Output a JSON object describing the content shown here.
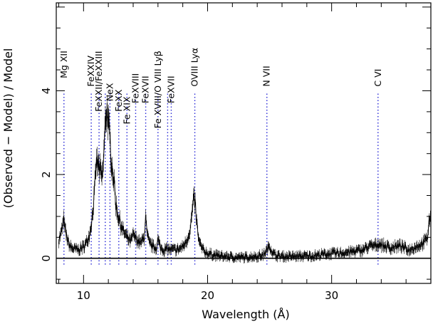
{
  "chart_data": {
    "type": "line",
    "title": "",
    "xlabel": "Wavelength (Å)",
    "ylabel": "(Observed − Model) / Model",
    "xlim": [
      7.8,
      38
    ],
    "ylim": [
      -0.6,
      6.1
    ],
    "xticks": [
      10,
      20,
      30
    ],
    "yticks": [
      0,
      2,
      4
    ],
    "zero_line": 0,
    "grid": false,
    "legend": "none",
    "series": [
      {
        "x": [
          8.0,
          8.2,
          8.4,
          8.6,
          8.8,
          9.0,
          9.3,
          9.6,
          9.9,
          10.2,
          10.5,
          10.7,
          10.9,
          11.0,
          11.1,
          11.2,
          11.3,
          11.4,
          11.5,
          11.6,
          11.7,
          11.8,
          11.9,
          12.0,
          12.1,
          12.2,
          12.3,
          12.4,
          12.5,
          12.6,
          12.8,
          13.0,
          13.2,
          13.4,
          13.6,
          13.8,
          14.0,
          14.3,
          14.6,
          14.9,
          15.0,
          15.1,
          15.3,
          15.6,
          15.9,
          16.0,
          16.2,
          16.5,
          16.8,
          17.1,
          17.4,
          17.7,
          18.0,
          18.3,
          18.6,
          18.8,
          18.9,
          19.0,
          19.1,
          19.3,
          19.6,
          20.0,
          20.5,
          21.0,
          21.5,
          22.0,
          22.5,
          23.0,
          23.5,
          24.0,
          24.5,
          24.8,
          25.0,
          25.3,
          25.8,
          26.5,
          27.5,
          28.5,
          29.5,
          30.5,
          31.5,
          32.5,
          33.0,
          33.5,
          33.8,
          34.2,
          34.8,
          35.5,
          36.2,
          36.8,
          37.3,
          37.7,
          37.9,
          38.0
        ],
        "y": [
          0.45,
          0.6,
          0.9,
          0.55,
          0.35,
          0.25,
          0.22,
          0.2,
          0.25,
          0.35,
          0.6,
          1.0,
          1.6,
          2.2,
          2.3,
          2.2,
          2.1,
          2.0,
          1.9,
          2.3,
          2.9,
          3.4,
          3.6,
          3.2,
          2.9,
          2.5,
          2.2,
          2.0,
          1.7,
          1.3,
          1.0,
          0.8,
          0.65,
          0.55,
          0.45,
          0.4,
          0.55,
          0.45,
          0.35,
          0.5,
          1.0,
          0.6,
          0.35,
          0.28,
          0.25,
          0.45,
          0.25,
          0.2,
          0.22,
          0.2,
          0.2,
          0.22,
          0.28,
          0.4,
          0.7,
          1.2,
          1.4,
          1.3,
          0.9,
          0.4,
          0.2,
          0.12,
          0.08,
          0.05,
          0.04,
          0.03,
          0.02,
          0.02,
          0.04,
          0.05,
          0.08,
          0.2,
          0.3,
          0.1,
          0.05,
          0.04,
          0.05,
          0.06,
          0.1,
          0.12,
          0.15,
          0.2,
          0.28,
          0.3,
          0.35,
          0.3,
          0.25,
          0.3,
          0.2,
          0.28,
          0.35,
          0.45,
          1.0,
          0.8
        ]
      }
    ],
    "lines": [
      {
        "x": 8.42,
        "label": "Mg XII",
        "label_y": 4.3
      },
      {
        "x": 10.62,
        "label": "FeXXIV",
        "label_y": 4.1
      },
      {
        "x": 11.25,
        "label": "FeXXII/FeXXIII",
        "label_y": 3.5
      },
      {
        "x": 11.75,
        "label": "",
        "label_y": 0
      },
      {
        "x": 12.13,
        "label": "NeX",
        "label_y": 3.75
      },
      {
        "x": 12.84,
        "label": "FeXX",
        "label_y": 3.5
      },
      {
        "x": 13.5,
        "label": "Fe XIX",
        "label_y": 3.2
      },
      {
        "x": 14.2,
        "label": "FeXVIII",
        "label_y": 3.7
      },
      {
        "x": 15.01,
        "label": "FeXVII",
        "label_y": 3.7
      },
      {
        "x": 16.0,
        "label": "Fe XVIII/O VIII Lyβ",
        "label_y": 3.1
      },
      {
        "x": 16.78,
        "label": "",
        "label_y": 0
      },
      {
        "x": 17.07,
        "label": "FeXVII",
        "label_y": 3.7
      },
      {
        "x": 18.97,
        "label": "OVIII Lyα",
        "label_y": 4.1
      },
      {
        "x": 24.78,
        "label": "N VII",
        "label_y": 4.1
      },
      {
        "x": 33.74,
        "label": "C VI",
        "label_y": 4.1
      }
    ],
    "colors": {
      "data": "#000000",
      "lines": "#2a2ad6",
      "axes": "#000000"
    }
  }
}
